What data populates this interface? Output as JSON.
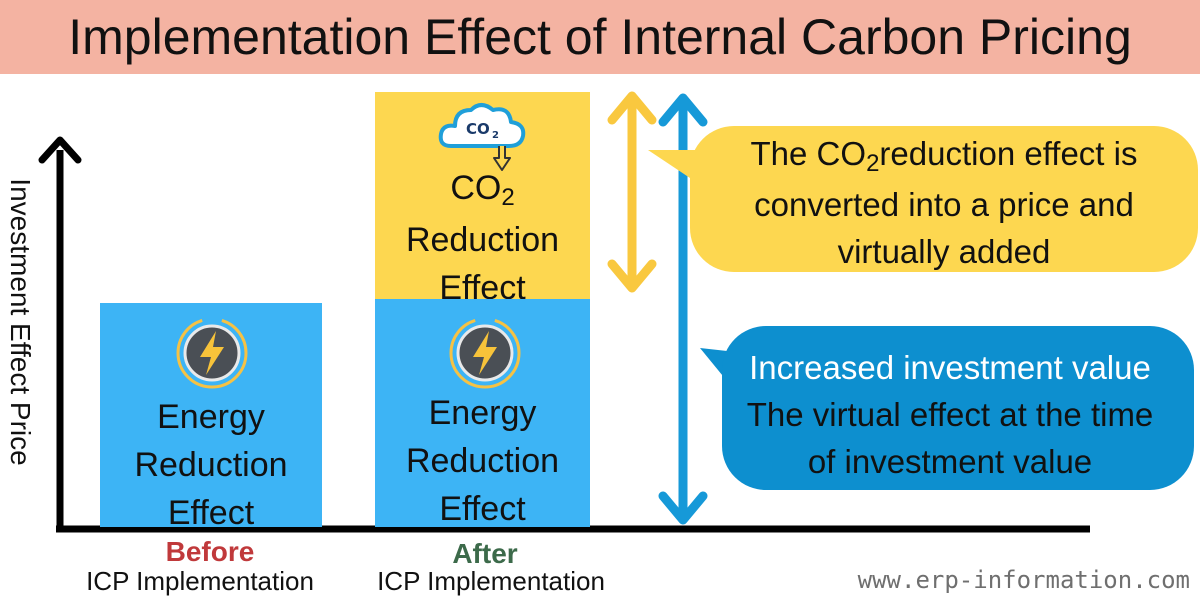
{
  "title": "Implementation Effect of Internal Carbon Pricing",
  "y_axis_label": "Investment Effect Price",
  "before_bar": {
    "energy_lines": [
      "Energy",
      "Reduction",
      "Effect"
    ]
  },
  "after_bar": {
    "co2_main": "CO",
    "co2_sub": "2",
    "co2_lines": [
      "Reduction",
      "Effect"
    ],
    "cloud_text": "CO",
    "cloud_sub": "2",
    "energy_lines": [
      "Energy",
      "Reduction",
      "Effect"
    ]
  },
  "callout_yellow": {
    "line1_pre": "The CO",
    "line1_sub": "2",
    "line1_post": "reduction effect is",
    "line2": "converted into a price and",
    "line3": "virtually added"
  },
  "callout_blue": {
    "lines": [
      "Increased investment value",
      "The virtual effect at the time",
      "of investment value"
    ]
  },
  "categories": {
    "before": "Before",
    "before_sub": "ICP Implementation",
    "after": "After",
    "after_sub": "ICP Implementation"
  },
  "footer": "www.erp-information.com",
  "colors": {
    "title_bg": "#f4b3a2",
    "energy_box": "#3db4f5",
    "co2_box": "#fdd750",
    "callout_blue": "#0d8fcf",
    "before_label": "#c0393b",
    "after_label": "#3c6a4a"
  }
}
